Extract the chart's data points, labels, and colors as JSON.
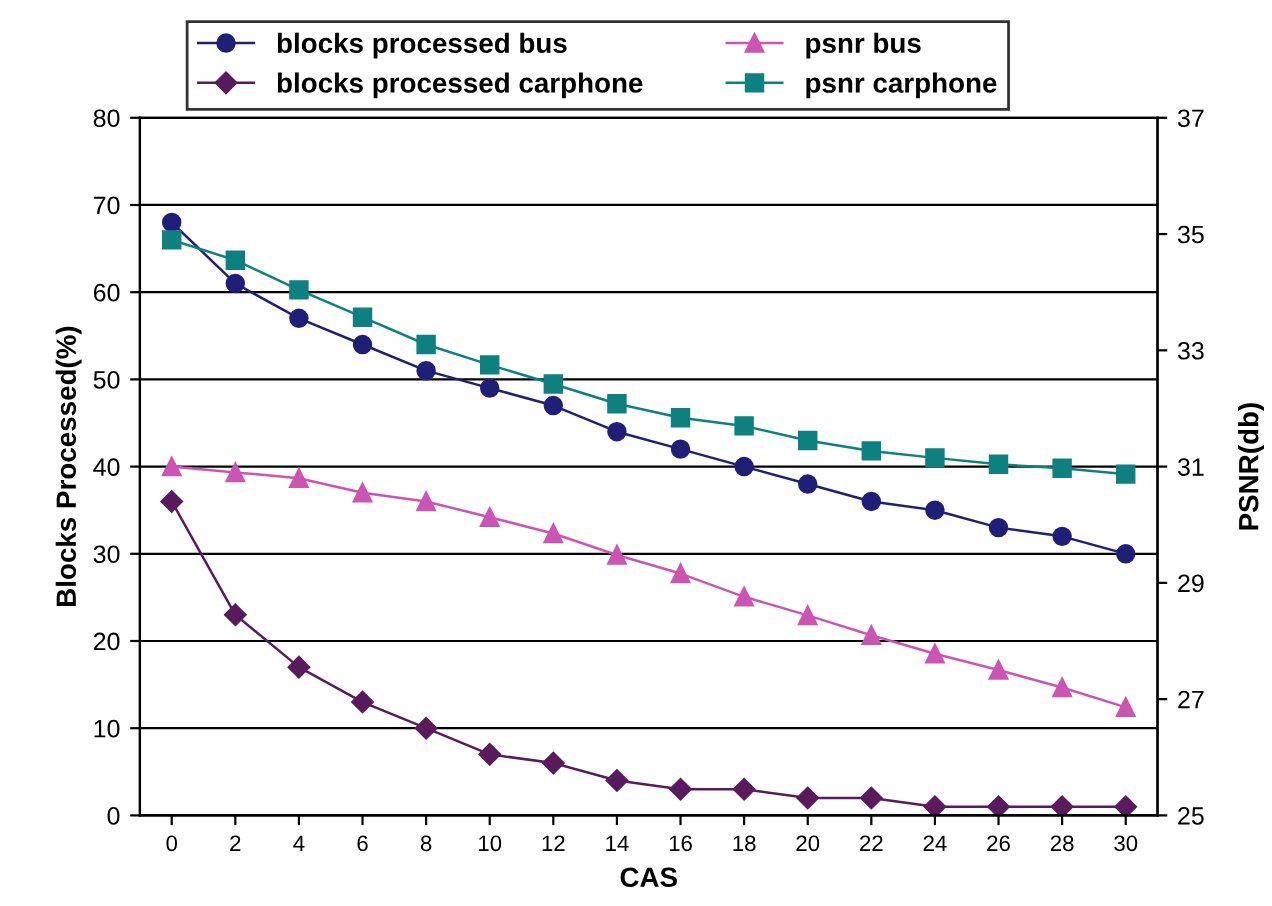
{
  "chart_data": {
    "type": "line",
    "xlabel": "CAS",
    "ylabel": "Blocks Processed(%)",
    "y2label": "PSNR(db)",
    "categories": [
      "0",
      "2",
      "4",
      "6",
      "8",
      "10",
      "12",
      "14",
      "16",
      "18",
      "20",
      "22",
      "24",
      "26",
      "28",
      "30"
    ],
    "series": [
      {
        "name": "blocks processed bus",
        "color": "#1f1f78",
        "marker": "circle",
        "values": [
          68,
          61,
          57,
          54,
          51,
          49,
          47,
          44,
          42,
          40,
          38,
          36,
          35,
          33,
          32,
          30
        ]
      },
      {
        "name": "blocks processed carphone",
        "color": "#5a1a5e",
        "marker": "diamond",
        "values": [
          36,
          23,
          17,
          13,
          10,
          7,
          6,
          4,
          3,
          3,
          2,
          2,
          1,
          1,
          1,
          1
        ]
      },
      {
        "name": "psnr bus",
        "color": "#cc55b4",
        "marker": "triangle",
        "axis": "y2",
        "values": [
          31.0,
          30.9,
          30.8,
          30.55,
          30.4,
          30.13,
          29.85,
          29.48,
          29.16,
          28.76,
          28.44,
          28.1,
          27.78,
          27.5,
          27.2,
          26.86
        ]
      },
      {
        "name": "psnr carphone",
        "color": "#0e8080",
        "marker": "square",
        "axis": "y2",
        "values": [
          34.9,
          34.55,
          34.04,
          33.57,
          33.1,
          32.75,
          32.42,
          32.08,
          31.84,
          31.7,
          31.45,
          31.27,
          31.15,
          31.04,
          30.97,
          30.87
        ]
      }
    ],
    "ylim": [
      0,
      80
    ],
    "yticks": [
      0,
      10,
      20,
      30,
      40,
      50,
      60,
      70,
      80
    ],
    "y2lim": [
      25,
      37
    ],
    "y2ticks": [
      25,
      27,
      29,
      31,
      33,
      35,
      37
    ],
    "grid": "y",
    "legend": "top"
  }
}
